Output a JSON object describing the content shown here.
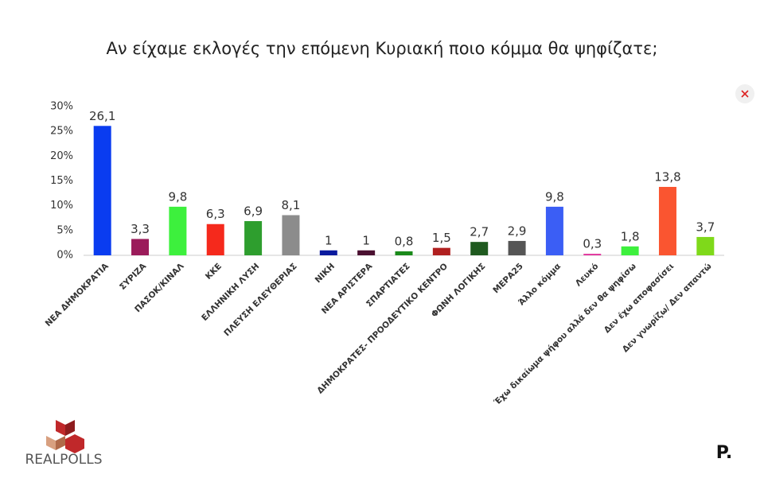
{
  "chart_data": {
    "type": "bar",
    "title": "Αν είχαμε εκλογές την επόμενη Κυριακή ποιο κόμμα θα ψηφίζατε;",
    "categories": [
      "ΝΕΑ ΔΗΜΟΚΡΑΤΙΑ",
      "ΣΥΡΙΖΑ",
      "ΠΑΣΟΚ/ΚΙΝΑΛ",
      "ΚΚΕ",
      "ΕΛΛΗΝΙΚΗ ΛΥΣΗ",
      "ΠΛΕΥΣΗ ΕΛΕΥΘΕΡΙΑΣ",
      "ΝΙΚΗ",
      "ΝΕΑ ΑΡΙΣΤΕΡΑ",
      "ΣΠΑΡΤΙΑΤΕΣ",
      "ΔΗΜΟΚΡΑΤΕΣ- ΠΡΟΟΔΕΥΤΙΚΟ ΚΕΝΤΡΟ",
      "ΦΩΝΗ ΛΟΓΙΚΗΣ",
      "ΜΕΡΑ25",
      "Άλλο κόμμα",
      "Λευκό",
      "Έχω δικαίωμα ψήφου αλλά δεν θα ψηφίσω",
      "Δεν έχω αποφασίσει",
      "Δεν γνωρίζω/ Δεν απαντώ"
    ],
    "values": [
      26.1,
      3.3,
      9.8,
      6.3,
      6.9,
      8.1,
      1,
      1,
      0.8,
      1.5,
      2.7,
      2.9,
      9.8,
      0.3,
      1.8,
      13.8,
      3.7
    ],
    "value_labels": [
      "26,1",
      "3,3",
      "9,8",
      "6,3",
      "6,9",
      "8,1",
      "1",
      "1",
      "0,8",
      "1,5",
      "2,7",
      "2,9",
      "9,8",
      "0,3",
      "1,8",
      "13,8",
      "3,7"
    ],
    "colors": [
      "#0a3cf0",
      "#9b1b5a",
      "#3df03d",
      "#f5291c",
      "#2e9e2e",
      "#8c8c8c",
      "#0a1a9e",
      "#4a1030",
      "#1a8a1a",
      "#b02020",
      "#1f5a1f",
      "#555555",
      "#3b5ef5",
      "#e0309a",
      "#3df03d",
      "#fa5530",
      "#7fd91a"
    ],
    "ylim": [
      0,
      30
    ],
    "yticks": [
      {
        "value": 0,
        "label": "0%"
      },
      {
        "value": 5,
        "label": "5%"
      },
      {
        "value": 10,
        "label": "10%"
      },
      {
        "value": 15,
        "label": "15%"
      },
      {
        "value": 20,
        "label": "20%"
      },
      {
        "value": 25,
        "label": "25%"
      },
      {
        "value": 30,
        "label": "30%"
      }
    ],
    "grid": false
  },
  "logo_left": "REALPOLLS",
  "logo_right": "P."
}
